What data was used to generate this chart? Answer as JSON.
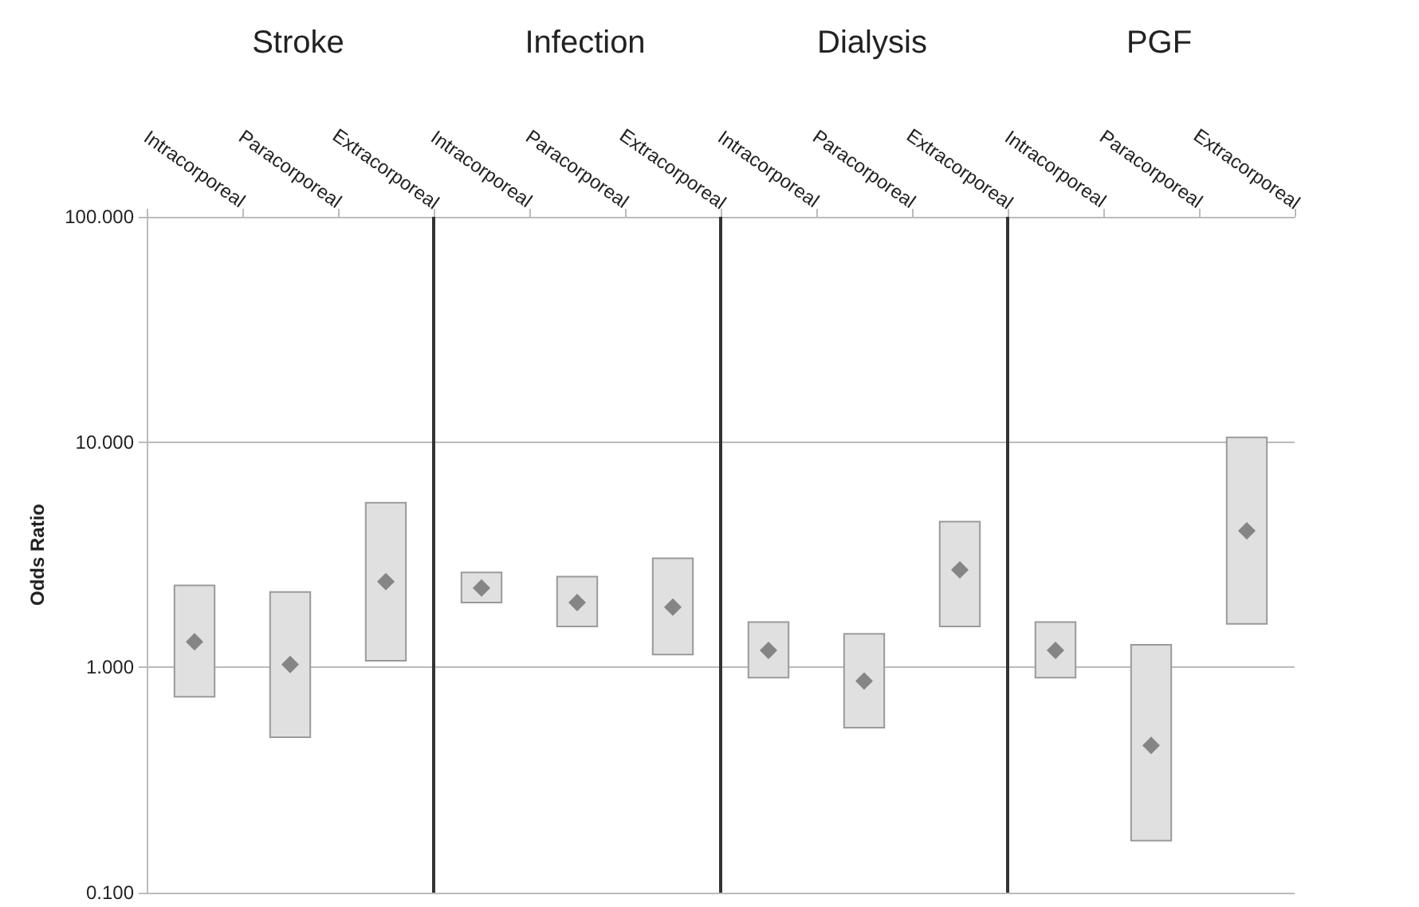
{
  "chart_data": [
    {
      "type": "bar",
      "title": "Stroke",
      "ylabel": "Odds Ratio",
      "categories": [
        "Intracorporeal",
        "Paracorporeal",
        "Extracorporeal"
      ],
      "log": true,
      "grid": "y",
      "ylim": [
        0.1,
        100
      ],
      "yticks": [
        {
          "value": 0.1,
          "label": "0.100"
        },
        {
          "value": 1,
          "label": "1.000"
        },
        {
          "value": 10,
          "label": "10.000"
        },
        {
          "value": 100,
          "label": "100.000"
        }
      ],
      "series": [
        {
          "type": "bar",
          "color": "#e0e0e0",
          "base": [
            0.74,
            0.49,
            1.07
          ],
          "values": [
            1.57,
            1.67,
            4.31
          ]
        },
        {
          "type": "scatter",
          "marker": "diamond",
          "color": "#6e6e6e",
          "x": [
            "Intracorporeal",
            "Paracorporeal",
            "Extracorporeal"
          ],
          "values": [
            1.3,
            1.03,
            2.4
          ]
        }
      ]
    },
    {
      "type": "bar",
      "title": "Infection",
      "categories": [
        "Intracorporeal",
        "Paracorporeal",
        "Extracorporeal"
      ],
      "log": true,
      "grid": "y",
      "tick_labels": "x",
      "ylim": [
        0.1,
        100
      ],
      "yticks": [
        0.1,
        1,
        10,
        100
      ],
      "series": [
        {
          "type": "bar",
          "color": "#e0e0e0",
          "base": [
            1.94,
            1.52,
            1.14
          ],
          "values": [
            0.7,
            1.01,
            1.91
          ]
        },
        {
          "type": "scatter",
          "marker": "diamond",
          "color": "#6e6e6e",
          "x": [
            "Intracorporeal",
            "Paracorporeal",
            "Extracorporeal"
          ],
          "values": [
            2.25,
            1.94,
            1.85
          ]
        }
      ]
    },
    {
      "type": "bar",
      "title": "Dialysis",
      "categories": [
        "Intracorporeal",
        "Paracorporeal",
        "Extracorporeal"
      ],
      "log": true,
      "grid": "y",
      "tick_labels": "x",
      "ylim": [
        0.1,
        100
      ],
      "yticks": [
        0.1,
        1,
        10,
        100
      ],
      "series": [
        {
          "type": "bar",
          "color": "#e0e0e0",
          "base": [
            0.9,
            0.54,
            1.52
          ],
          "values": [
            0.69,
            0.87,
            2.91
          ]
        },
        {
          "type": "scatter",
          "marker": "diamond",
          "color": "#6e6e6e",
          "x": [
            "Intracorporeal",
            "Paracorporeal",
            "Extracorporeal"
          ],
          "values": [
            1.19,
            0.87,
            2.71
          ]
        }
      ]
    },
    {
      "type": "bar",
      "title": "PGF",
      "categories": [
        "Intracorporeal",
        "Paracorporeal",
        "Extracorporeal"
      ],
      "log": true,
      "grid": "y",
      "tick_labels": "x",
      "ylim": [
        0.1,
        100
      ],
      "yticks": [
        0.1,
        1,
        10,
        100
      ],
      "series": [
        {
          "type": "bar",
          "color": "#e0e0e0",
          "base": [
            0.9,
            0.17,
            1.56
          ],
          "values": [
            0.69,
            1.09,
            8.94
          ]
        },
        {
          "type": "scatter",
          "marker": "diamond",
          "color": "#6e6e6e",
          "x": [
            "Intracorporeal",
            "Paracorporeal",
            "Extracorporeal"
          ],
          "values": [
            1.19,
            0.45,
            4.04
          ]
        }
      ]
    }
  ]
}
